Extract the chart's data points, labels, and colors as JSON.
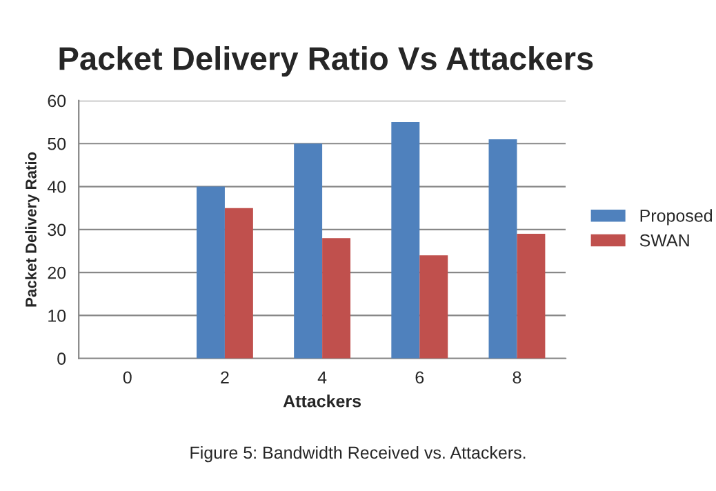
{
  "chart_data": {
    "type": "bar",
    "title": "Packet Delivery Ratio Vs Attackers",
    "xlabel": "Attackers",
    "ylabel": "Packet Delivery Ratio",
    "categories": [
      "0",
      "2",
      "4",
      "6",
      "8"
    ],
    "series": [
      {
        "name": "Proposed",
        "color": "#4f81bd",
        "values": [
          null,
          40,
          50,
          55,
          51
        ]
      },
      {
        "name": "SWAN",
        "color": "#c0504d",
        "values": [
          null,
          35,
          28,
          24,
          29
        ]
      }
    ],
    "ylim": [
      0,
      60
    ],
    "yticks": [
      0,
      10,
      20,
      30,
      40,
      50,
      60
    ],
    "grid": "y",
    "legend": "right",
    "annotations": [
      "Figure 5: Bandwidth Received vs. Attackers."
    ]
  }
}
